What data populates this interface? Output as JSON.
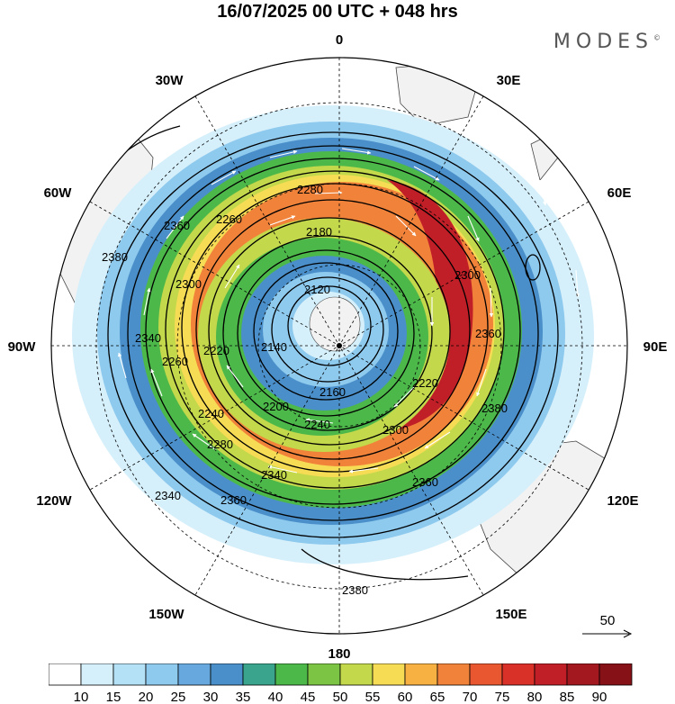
{
  "header": {
    "title": "16/07/2025  00 UTC  + 048 hrs",
    "brand": "MODES",
    "brand_mark": "©"
  },
  "map": {
    "projection": "polar-stereographic-south",
    "longitude_labels": {
      "top": "0",
      "top_left": "30W",
      "top_right": "30E",
      "upper_left": "60W",
      "upper_right": "60E",
      "left": "90W",
      "right": "90E",
      "lower_left": "120W",
      "lower_right": "120E",
      "bottom_left": "150W",
      "bottom_right": "150E",
      "bottom": "180"
    },
    "contour_labels": [
      "2380",
      "2360",
      "2340",
      "2300",
      "2280",
      "2260",
      "2240",
      "2220",
      "2200",
      "2180",
      "2160",
      "2140",
      "2120",
      "2340",
      "2300",
      "2360",
      "2220",
      "2240",
      "2260",
      "2280",
      "2300",
      "2340",
      "2360",
      "2360",
      "2380",
      "2380",
      "2300",
      "2260",
      "2280"
    ],
    "colors": {
      "land": "#f2f2f2",
      "coast": "#444444",
      "grid": "#000000"
    }
  },
  "wind_reference": {
    "label": "50"
  },
  "colorbar": {
    "ticks": [
      "10",
      "15",
      "20",
      "25",
      "30",
      "35",
      "40",
      "45",
      "50",
      "55",
      "60",
      "65",
      "70",
      "75",
      "80",
      "85",
      "90"
    ],
    "colors": [
      "#ffffff",
      "#d6f0fb",
      "#b5e1f7",
      "#8ec9ee",
      "#67a9de",
      "#4a8fc9",
      "#3aa58c",
      "#4db84a",
      "#7cc443",
      "#c3d84a",
      "#f6dc55",
      "#f7b143",
      "#f1823a",
      "#e8572f",
      "#d93028",
      "#c01f27",
      "#a3181f",
      "#861218"
    ]
  }
}
